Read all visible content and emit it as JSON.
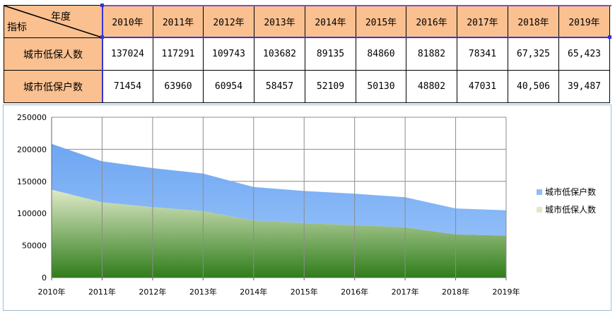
{
  "table": {
    "corner_top": "年度",
    "corner_bottom": "指标",
    "years": [
      "2010年",
      "2011年",
      "2012年",
      "2013年",
      "2014年",
      "2015年",
      "2016年",
      "2017年",
      "2018年",
      "2019年"
    ],
    "rows": [
      {
        "label": "城市低保人数",
        "cells": [
          "137024",
          "117291",
          "109743",
          "103682",
          "89135",
          "84860",
          "81882",
          "78341",
          "67,325",
          "65,423"
        ]
      },
      {
        "label": "城市低保户数",
        "cells": [
          "71454",
          "63960",
          "60954",
          "58457",
          "52109",
          "50130",
          "48802",
          "47031",
          "40,506",
          "39,487"
        ]
      }
    ]
  },
  "chart_data": {
    "type": "area",
    "stacked": true,
    "categories": [
      "2010年",
      "2011年",
      "2012年",
      "2013年",
      "2014年",
      "2015年",
      "2016年",
      "2017年",
      "2018年",
      "2019年"
    ],
    "series": [
      {
        "name": "城市低保人数",
        "values": [
          137024,
          117291,
          109743,
          103682,
          89135,
          84860,
          81882,
          78341,
          67325,
          65423
        ],
        "color": "#2f7d1a",
        "color_light": "#dfe9c7"
      },
      {
        "name": "城市低保户数",
        "values": [
          71454,
          63960,
          60954,
          58457,
          52109,
          50130,
          48802,
          47031,
          40506,
          39487
        ],
        "color": "#6ea6f2",
        "color_light": "#8fbdf8"
      }
    ],
    "ylim": [
      0,
      250000
    ],
    "yticks": [
      "0",
      "50000",
      "100000",
      "150000",
      "200000",
      "250000"
    ],
    "grid": true,
    "legend_position": "right",
    "legend_order": [
      "城市低保户数",
      "城市低保人数"
    ]
  }
}
